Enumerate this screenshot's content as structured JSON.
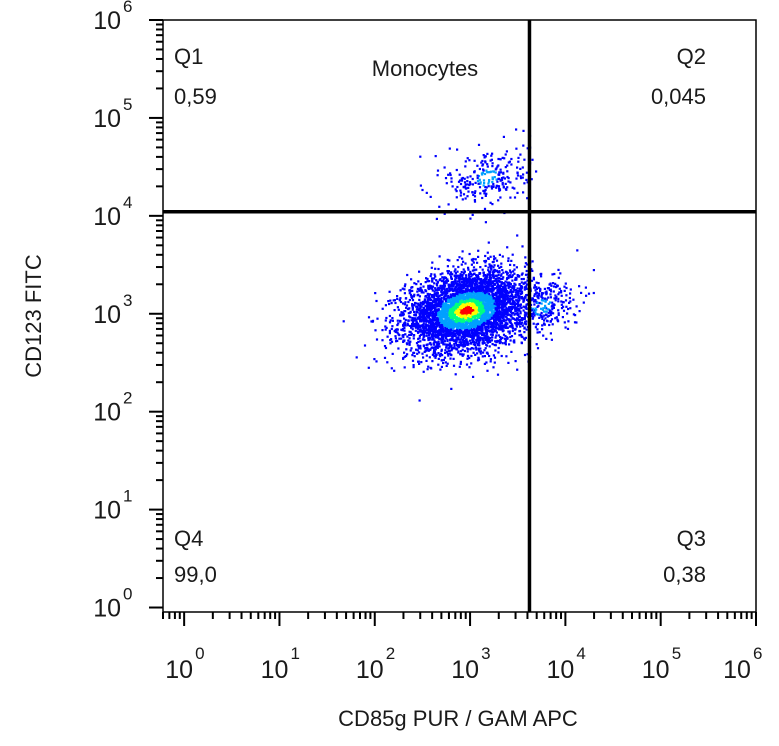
{
  "chart_data": {
    "type": "scatter",
    "title": "Monocytes",
    "xlabel": "CD85g PUR / GAM APC",
    "ylabel": "CD123 FITC",
    "x_scale": "log",
    "y_scale": "log",
    "xlim": [
      0.6,
      1000000
    ],
    "ylim": [
      0.9,
      1000000
    ],
    "x_ticks": [
      {
        "base": "10",
        "exp": "0",
        "value": 1
      },
      {
        "base": "10",
        "exp": "1",
        "value": 10
      },
      {
        "base": "10",
        "exp": "2",
        "value": 100
      },
      {
        "base": "10",
        "exp": "3",
        "value": 1000
      },
      {
        "base": "10",
        "exp": "4",
        "value": 10000
      },
      {
        "base": "10",
        "exp": "5",
        "value": 100000
      },
      {
        "base": "10",
        "exp": "6",
        "value": 1000000
      }
    ],
    "y_ticks": [
      {
        "base": "10",
        "exp": "0",
        "value": 1
      },
      {
        "base": "10",
        "exp": "1",
        "value": 10
      },
      {
        "base": "10",
        "exp": "2",
        "value": 100
      },
      {
        "base": "10",
        "exp": "3",
        "value": 1000
      },
      {
        "base": "10",
        "exp": "4",
        "value": 10000
      },
      {
        "base": "10",
        "exp": "5",
        "value": 100000
      },
      {
        "base": "10",
        "exp": "6",
        "value": 1000000
      }
    ],
    "quadrant_gate": {
      "x": 4200,
      "y": 11000
    },
    "quadrants": [
      {
        "name": "Q1",
        "value": "0,59",
        "position": "top-left"
      },
      {
        "name": "Q2",
        "value": "0,045",
        "position": "top-right"
      },
      {
        "name": "Q3",
        "value": "0,38",
        "position": "bottom-right"
      },
      {
        "name": "Q4",
        "value": "99,0",
        "position": "bottom-left"
      }
    ],
    "populations": [
      {
        "center_x": 900,
        "center_y": 1100,
        "spread_log_x": 0.32,
        "spread_log_y": 0.2,
        "share": 0.9
      },
      {
        "center_x": 1500,
        "center_y": 25000,
        "spread_log_x": 0.22,
        "spread_log_y": 0.16,
        "share": 0.05
      },
      {
        "center_x": 5500,
        "center_y": 1200,
        "spread_log_x": 0.2,
        "spread_log_y": 0.15,
        "share": 0.05
      }
    ],
    "color_scale": [
      "#0000ff",
      "#00a0ff",
      "#00ff80",
      "#ffff00",
      "#ff0000"
    ],
    "grid": false
  }
}
